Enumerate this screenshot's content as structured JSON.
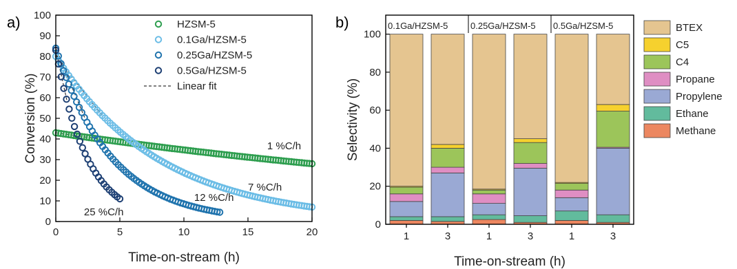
{
  "panel_labels": [
    "a)",
    "b)"
  ],
  "colors": {
    "HZSM-5": "#2e9e4f",
    "0.1Ga/HZSM-5": "#6cbde6",
    "0.25Ga/HZSM-5": "#1f73ad",
    "0.5Ga/HZSM-5": "#1d3f73",
    "BTEX": "#e5c590",
    "C5": "#f6d12e",
    "C4": "#9cc55a",
    "Propane": "#df8ec3",
    "Propylene": "#9aa9d4",
    "Ethane": "#62bb9d",
    "Methane": "#ec8760"
  },
  "chart_data": [
    {
      "type": "scatter",
      "xlabel": "Time-on-stream (h)",
      "ylabel": "Conversion (%)",
      "xlim": [
        0,
        20
      ],
      "ylim": [
        0,
        100
      ],
      "xticks": [
        0,
        5,
        10,
        15,
        20
      ],
      "yticks": [
        0,
        10,
        20,
        30,
        40,
        50,
        60,
        70,
        80,
        90,
        100
      ],
      "grid": false,
      "legend_position": "top-center",
      "fit_legend_label": "Linear fit",
      "series": [
        {
          "name": "HZSM-5",
          "x_start": 0,
          "x_end": 20,
          "y_start": 43,
          "y_end": 28,
          "n_points": 100
        },
        {
          "name": "0.1Ga/HZSM-5",
          "x_start": 0,
          "x_end": 20,
          "y_start": 80,
          "y_end": 7,
          "n_points": 100
        },
        {
          "name": "0.25Ga/HZSM-5",
          "x_start": 0,
          "x_end": 12.8,
          "y_start": 84,
          "y_end": 4.5,
          "n_points": 64
        },
        {
          "name": "0.5Ga/HZSM-5",
          "x_start": 0,
          "x_end": 5,
          "y_start": 83,
          "y_end": 11,
          "n_points": 25
        }
      ],
      "annotations": [
        {
          "text": "1 %C/h",
          "x": 16.5,
          "y": 35
        },
        {
          "text": "7 %C/h",
          "x": 15.0,
          "y": 15
        },
        {
          "text": "12 %C/h",
          "x": 10.8,
          "y": 10
        },
        {
          "text": "25 %C/h",
          "x": 2.2,
          "y": 3
        }
      ]
    },
    {
      "type": "bar",
      "stacked": true,
      "xlabel": "Time-on-stream (h)",
      "ylabel": "Selectivity (%)",
      "ylim": [
        0,
        110
      ],
      "yticks": [
        0,
        20,
        40,
        60,
        80,
        100
      ],
      "grid": false,
      "legend_position": "right",
      "categories": [
        "1",
        "3",
        "1",
        "3",
        "1",
        "3"
      ],
      "groups": [
        "0.1Ga/HZSM-5",
        "0.25Ga/HZSM-5",
        "0.5Ga/HZSM-5"
      ],
      "series": [
        {
          "name": "Methane",
          "values": [
            2,
            1.5,
            2.5,
            1,
            2,
            1
          ]
        },
        {
          "name": "Ethane",
          "values": [
            2,
            2.5,
            2.5,
            3.5,
            5,
            4
          ]
        },
        {
          "name": "Propylene",
          "values": [
            8,
            23,
            6,
            25,
            7,
            35
          ]
        },
        {
          "name": "Propane",
          "values": [
            4,
            3,
            5,
            2.5,
            4,
            0.5
          ]
        },
        {
          "name": "C4",
          "values": [
            3.5,
            10,
            2,
            11,
            3.5,
            19
          ]
        },
        {
          "name": "C5",
          "values": [
            0.5,
            2,
            0.5,
            2,
            0.5,
            3.5
          ]
        },
        {
          "name": "BTEX",
          "values": [
            80,
            58,
            81.5,
            55,
            78,
            37
          ]
        }
      ],
      "legend_order": [
        "BTEX",
        "C5",
        "C4",
        "Propane",
        "Propylene",
        "Ethane",
        "Methane"
      ]
    }
  ]
}
